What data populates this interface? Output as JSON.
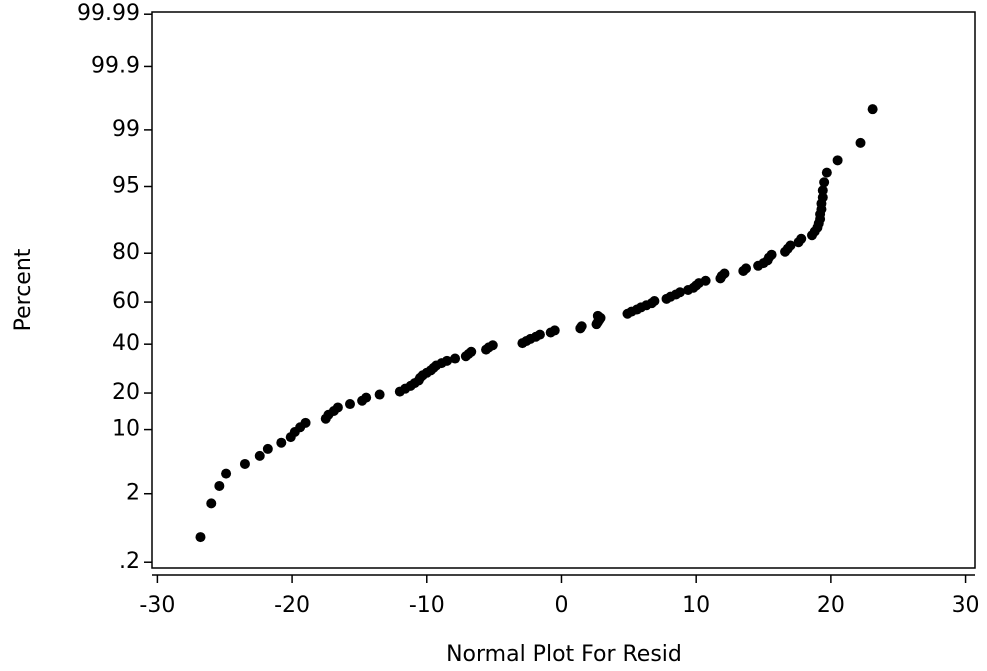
{
  "chart_data": {
    "type": "scatter",
    "xlabel": "Normal Plot For Resid",
    "ylabel": "Percent",
    "yscale": "probit",
    "color": "#000000",
    "xlim": [
      -30.4,
      30.7
    ],
    "xticks": [
      -30,
      -20,
      -10,
      0,
      10,
      20,
      30
    ],
    "ylim": [
      0.16,
      99.991
    ],
    "yticks": [
      {
        "value": 0.2,
        "label": ".2"
      },
      2,
      10,
      20,
      40,
      60,
      80,
      95,
      99,
      99.9,
      99.99
    ],
    "x": [
      -26.8,
      -26.0,
      -25.4,
      -24.9,
      -23.5,
      -22.4,
      -21.8,
      -20.8,
      -20.1,
      -19.8,
      -19.4,
      -19.0,
      -17.5,
      -17.3,
      -16.9,
      -16.6,
      -15.7,
      -14.8,
      -14.5,
      -13.5,
      -12.0,
      -11.6,
      -11.2,
      -10.9,
      -10.6,
      -10.5,
      -10.3,
      -10.0,
      -9.7,
      -9.5,
      -9.3,
      -8.9,
      -8.5,
      -7.9,
      -7.1,
      -6.9,
      -6.7,
      -5.6,
      -5.4,
      -5.1,
      -2.9,
      -2.6,
      -2.3,
      -1.9,
      -1.6,
      -0.8,
      -0.5,
      1.4,
      1.5,
      2.6,
      2.7,
      2.8,
      2.9,
      2.7,
      4.9,
      5.2,
      5.6,
      5.9,
      6.3,
      6.7,
      6.9,
      7.8,
      8.1,
      8.5,
      8.8,
      9.4,
      9.8,
      10.0,
      10.2,
      10.7,
      11.8,
      11.9,
      12.1,
      13.5,
      13.7,
      14.6,
      15.0,
      15.3,
      15.4,
      15.6,
      16.6,
      16.8,
      17.0,
      17.6,
      17.8,
      18.6,
      18.8,
      19.0,
      19.1,
      19.2,
      19.2,
      19.3,
      19.3,
      19.4,
      19.4,
      19.5,
      19.7,
      20.5,
      22.2,
      23.1
    ],
    "values": [
      0.5,
      1.5,
      2.5,
      3.5,
      4.5,
      5.5,
      6.5,
      7.5,
      8.5,
      9.5,
      10.5,
      11.5,
      12.5,
      13.5,
      14.5,
      15.5,
      16.5,
      17.5,
      18.5,
      19.5,
      20.5,
      21.5,
      22.5,
      23.5,
      24.5,
      25.5,
      26.5,
      27.5,
      28.5,
      29.5,
      30.5,
      31.5,
      32.5,
      33.5,
      34.5,
      35.5,
      36.5,
      37.5,
      38.5,
      39.5,
      40.5,
      41.5,
      42.5,
      43.5,
      44.5,
      45.5,
      46.5,
      47.5,
      48.5,
      49.5,
      50.5,
      51.5,
      52.5,
      53.5,
      54.5,
      55.5,
      56.5,
      57.5,
      58.5,
      59.5,
      60.5,
      61.5,
      62.5,
      63.5,
      64.5,
      65.5,
      66.5,
      67.5,
      68.5,
      69.5,
      70.5,
      71.5,
      72.5,
      73.5,
      74.5,
      75.5,
      76.5,
      77.5,
      78.5,
      79.5,
      80.5,
      81.5,
      82.5,
      83.5,
      84.5,
      85.5,
      86.5,
      87.5,
      88.5,
      89.5,
      90.5,
      91.5,
      92.5,
      93.5,
      94.5,
      95.5,
      96.5,
      97.5,
      98.5,
      99.5
    ]
  }
}
